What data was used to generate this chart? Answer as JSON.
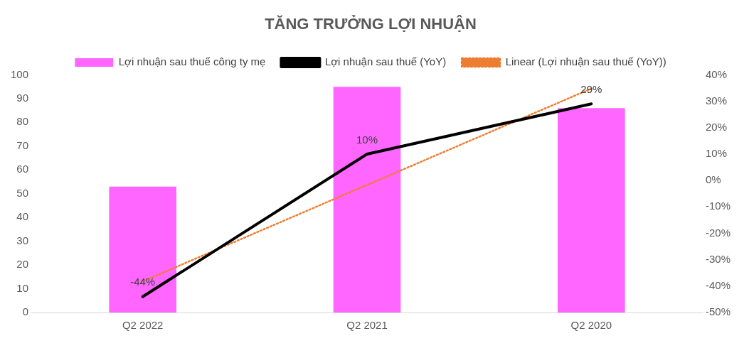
{
  "chart_data": {
    "type": "bar",
    "title": "TĂNG TRƯỞNG LỢI NHUẬN",
    "categories": [
      "Q2 2022",
      "Q2 2021",
      "Q2 2020"
    ],
    "series": [
      {
        "name": "Lợi nhuận sau thuế công ty mẹ",
        "color": "#ff66ff",
        "values": [
          53,
          95,
          86
        ]
      },
      {
        "name": "Lợi nhuận sau thuế (YoY)",
        "type": "line",
        "axis": "y2",
        "color": "#000000",
        "values": [
          -44,
          10,
          29
        ],
        "value_labels": [
          "-44%",
          "10%",
          "29%"
        ],
        "marker": "none",
        "line_style": "solid"
      },
      {
        "name": "Linear (Lợi nhuận sau thuế (YoY))",
        "type": "line",
        "axis": "y2",
        "color": "#ed7d31",
        "values": [
          -38.2,
          -1.7,
          34.8
        ],
        "marker": "none",
        "line_style": "dotted"
      }
    ],
    "ylim": [
      0,
      100
    ],
    "yticks": [
      0,
      10,
      20,
      30,
      40,
      50,
      60,
      70,
      80,
      90,
      100
    ],
    "y2lim": [
      -50,
      40
    ],
    "y2ticks": [
      {
        "value": -50,
        "label": "-50%"
      },
      {
        "value": -40,
        "label": "-40%"
      },
      {
        "value": -30,
        "label": "-30%"
      },
      {
        "value": -20,
        "label": "-20%"
      },
      {
        "value": -10,
        "label": "-10%"
      },
      {
        "value": 0,
        "label": "0%"
      },
      {
        "value": 10,
        "label": "10%"
      },
      {
        "value": 20,
        "label": "20%"
      },
      {
        "value": 30,
        "label": "30%"
      },
      {
        "value": 40,
        "label": "40%"
      }
    ],
    "grid": false,
    "legend": "top"
  }
}
